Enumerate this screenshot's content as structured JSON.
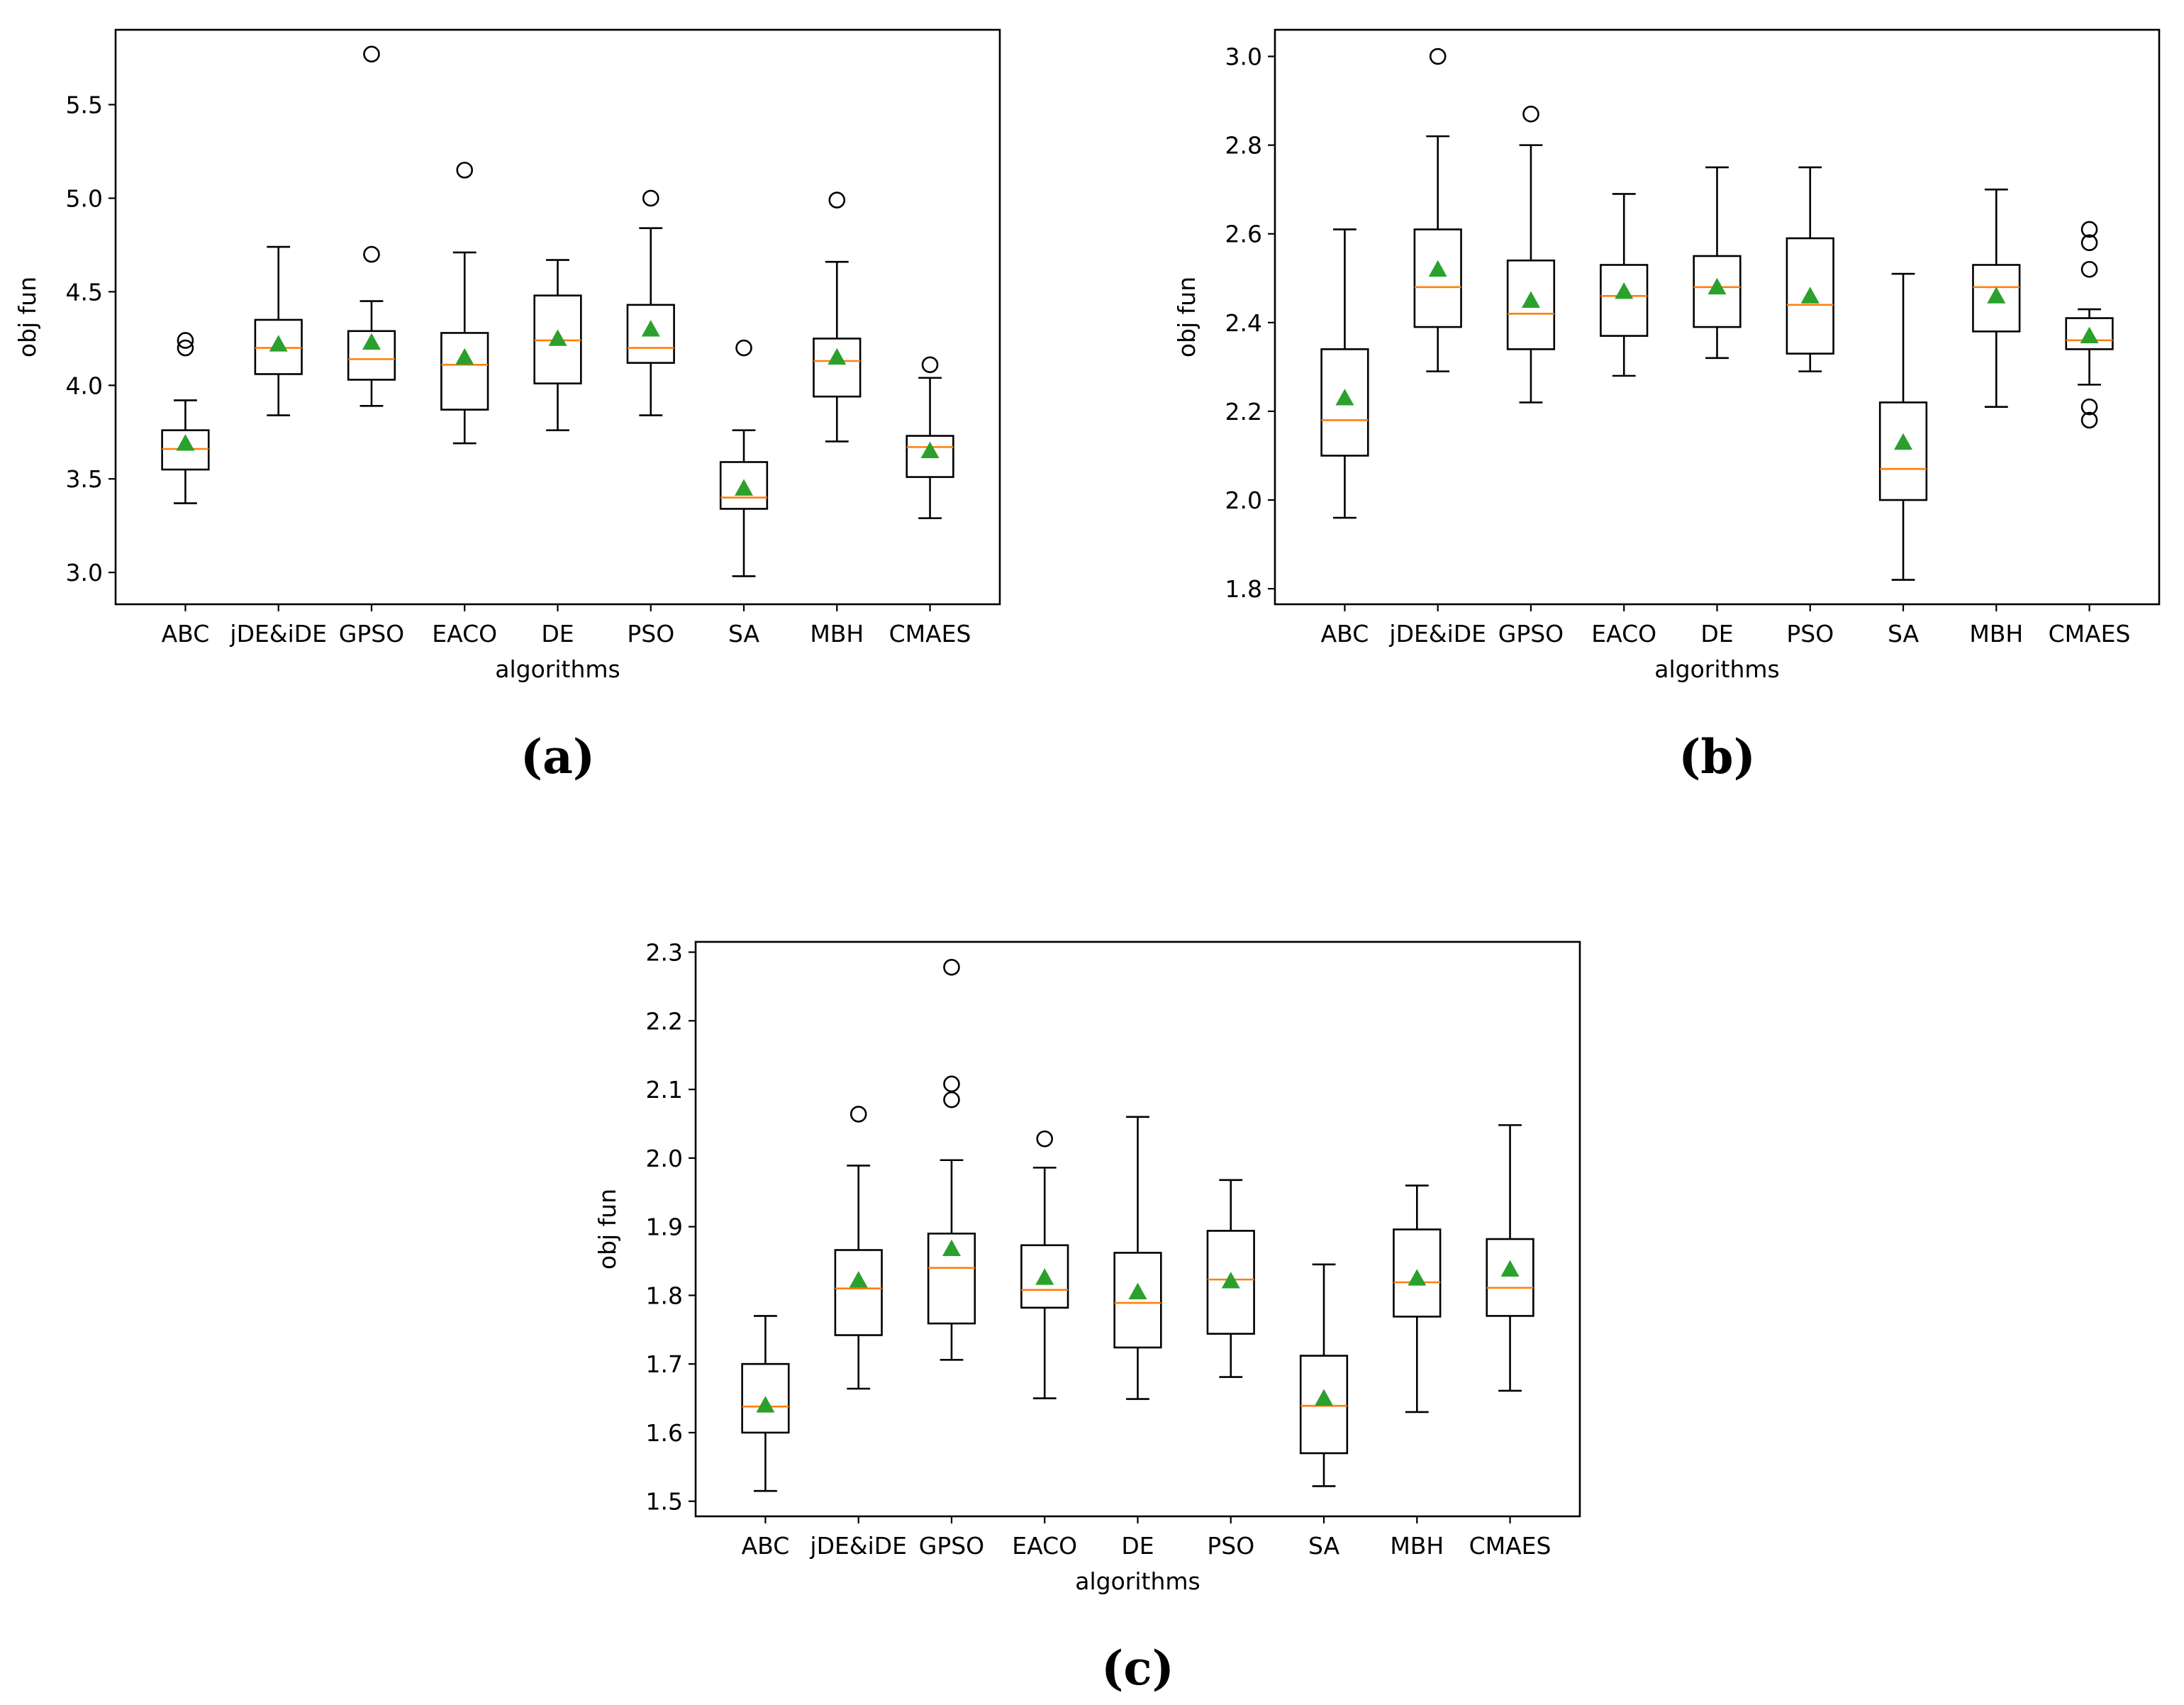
{
  "colors": {
    "box": "#000000",
    "median": "#ff7f0e",
    "mean_marker": "#2ca02c",
    "flier": "#000000",
    "background": "#ffffff"
  },
  "chart_data": [
    {
      "id": "a",
      "type": "boxplot",
      "caption": "(a)",
      "xlabel": "algorithms",
      "ylabel": "obj fun",
      "ylim": [
        2.83,
        5.9
      ],
      "yticks": [
        3.0,
        3.5,
        4.0,
        4.5,
        5.0,
        5.5
      ],
      "ytick_labels": [
        "3.0",
        "3.5",
        "4.0",
        "4.5",
        "5.0",
        "5.5"
      ],
      "categories": [
        "ABC",
        "jDE&iDE",
        "GPSO",
        "EACO",
        "DE",
        "PSO",
        "SA",
        "MBH",
        "CMAES"
      ],
      "boxes": [
        {
          "whislo": 3.37,
          "q1": 3.55,
          "med": 3.66,
          "q3": 3.76,
          "whishi": 3.92,
          "mean": 3.69,
          "fliers": [
            4.2,
            4.24
          ]
        },
        {
          "whislo": 3.84,
          "q1": 4.06,
          "med": 4.2,
          "q3": 4.35,
          "whishi": 4.74,
          "mean": 4.22,
          "fliers": []
        },
        {
          "whislo": 3.89,
          "q1": 4.03,
          "med": 4.14,
          "q3": 4.29,
          "whishi": 4.45,
          "mean": 4.23,
          "fliers": [
            4.7,
            5.77
          ]
        },
        {
          "whislo": 3.69,
          "q1": 3.87,
          "med": 4.11,
          "q3": 4.28,
          "whishi": 4.71,
          "mean": 4.15,
          "fliers": [
            5.15
          ]
        },
        {
          "whislo": 3.76,
          "q1": 4.01,
          "med": 4.24,
          "q3": 4.48,
          "whishi": 4.67,
          "mean": 4.25,
          "fliers": []
        },
        {
          "whislo": 3.84,
          "q1": 4.12,
          "med": 4.2,
          "q3": 4.43,
          "whishi": 4.84,
          "mean": 4.3,
          "fliers": [
            5.0
          ]
        },
        {
          "whislo": 2.98,
          "q1": 3.34,
          "med": 3.4,
          "q3": 3.59,
          "whishi": 3.76,
          "mean": 3.45,
          "fliers": [
            4.2
          ]
        },
        {
          "whislo": 3.7,
          "q1": 3.94,
          "med": 4.13,
          "q3": 4.25,
          "whishi": 4.66,
          "mean": 4.15,
          "fliers": [
            4.99
          ]
        },
        {
          "whislo": 3.29,
          "q1": 3.51,
          "med": 3.67,
          "q3": 3.73,
          "whishi": 4.04,
          "mean": 3.65,
          "fliers": [
            4.11
          ]
        }
      ]
    },
    {
      "id": "b",
      "type": "boxplot",
      "caption": "(b)",
      "xlabel": "algorithms",
      "ylabel": "obj fun",
      "ylim": [
        1.765,
        3.06
      ],
      "yticks": [
        1.8,
        2.0,
        2.2,
        2.4,
        2.6,
        2.8,
        3.0
      ],
      "ytick_labels": [
        "1.8",
        "2.0",
        "2.2",
        "2.4",
        "2.6",
        "2.8",
        "3.0"
      ],
      "categories": [
        "ABC",
        "jDE&iDE",
        "GPSO",
        "EACO",
        "DE",
        "PSO",
        "SA",
        "MBH",
        "CMAES"
      ],
      "boxes": [
        {
          "whislo": 1.96,
          "q1": 2.1,
          "med": 2.18,
          "q3": 2.34,
          "whishi": 2.61,
          "mean": 2.23,
          "fliers": []
        },
        {
          "whislo": 2.29,
          "q1": 2.39,
          "med": 2.48,
          "q3": 2.61,
          "whishi": 2.82,
          "mean": 2.52,
          "fliers": [
            3.0
          ]
        },
        {
          "whislo": 2.22,
          "q1": 2.34,
          "med": 2.42,
          "q3": 2.54,
          "whishi": 2.8,
          "mean": 2.45,
          "fliers": [
            2.87
          ]
        },
        {
          "whislo": 2.28,
          "q1": 2.37,
          "med": 2.46,
          "q3": 2.53,
          "whishi": 2.69,
          "mean": 2.47,
          "fliers": []
        },
        {
          "whislo": 2.32,
          "q1": 2.39,
          "med": 2.48,
          "q3": 2.55,
          "whishi": 2.75,
          "mean": 2.48,
          "fliers": []
        },
        {
          "whislo": 2.29,
          "q1": 2.33,
          "med": 2.44,
          "q3": 2.59,
          "whishi": 2.75,
          "mean": 2.46,
          "fliers": []
        },
        {
          "whislo": 1.82,
          "q1": 2.0,
          "med": 2.07,
          "q3": 2.22,
          "whishi": 2.51,
          "mean": 2.13,
          "fliers": []
        },
        {
          "whislo": 2.21,
          "q1": 2.38,
          "med": 2.48,
          "q3": 2.53,
          "whishi": 2.7,
          "mean": 2.46,
          "fliers": []
        },
        {
          "whislo": 2.26,
          "q1": 2.34,
          "med": 2.36,
          "q3": 2.41,
          "whishi": 2.43,
          "mean": 2.37,
          "fliers": [
            2.18,
            2.21,
            2.52,
            2.58,
            2.61
          ]
        }
      ]
    },
    {
      "id": "c",
      "type": "boxplot",
      "caption": "(c)",
      "xlabel": "algorithms",
      "ylabel": "obj fun",
      "ylim": [
        1.478,
        2.315
      ],
      "yticks": [
        1.5,
        1.6,
        1.7,
        1.8,
        1.9,
        2.0,
        2.1,
        2.2,
        2.3
      ],
      "ytick_labels": [
        "1.5",
        "1.6",
        "1.7",
        "1.8",
        "1.9",
        "2.0",
        "2.1",
        "2.2",
        "2.3"
      ],
      "categories": [
        "ABC",
        "jDE&iDE",
        "GPSO",
        "EACO",
        "DE",
        "PSO",
        "SA",
        "MBH",
        "CMAES"
      ],
      "boxes": [
        {
          "whislo": 1.515,
          "q1": 1.6,
          "med": 1.638,
          "q3": 1.7,
          "whishi": 1.77,
          "mean": 1.64,
          "fliers": []
        },
        {
          "whislo": 1.664,
          "q1": 1.742,
          "med": 1.81,
          "q3": 1.866,
          "whishi": 1.989,
          "mean": 1.822,
          "fliers": [
            2.064
          ]
        },
        {
          "whislo": 1.706,
          "q1": 1.759,
          "med": 1.84,
          "q3": 1.89,
          "whishi": 1.997,
          "mean": 1.868,
          "fliers": [
            2.085,
            2.108,
            2.278
          ]
        },
        {
          "whislo": 1.65,
          "q1": 1.782,
          "med": 1.808,
          "q3": 1.873,
          "whishi": 1.986,
          "mean": 1.826,
          "fliers": [
            2.028
          ]
        },
        {
          "whislo": 1.649,
          "q1": 1.724,
          "med": 1.789,
          "q3": 1.862,
          "whishi": 2.06,
          "mean": 1.805,
          "fliers": []
        },
        {
          "whislo": 1.681,
          "q1": 1.744,
          "med": 1.823,
          "q3": 1.894,
          "whishi": 1.968,
          "mean": 1.821,
          "fliers": []
        },
        {
          "whislo": 1.522,
          "q1": 1.57,
          "med": 1.639,
          "q3": 1.712,
          "whishi": 1.845,
          "mean": 1.65,
          "fliers": []
        },
        {
          "whislo": 1.63,
          "q1": 1.769,
          "med": 1.819,
          "q3": 1.896,
          "whishi": 1.96,
          "mean": 1.825,
          "fliers": []
        },
        {
          "whislo": 1.661,
          "q1": 1.77,
          "med": 1.811,
          "q3": 1.882,
          "whishi": 2.048,
          "mean": 1.838,
          "fliers": []
        }
      ]
    }
  ]
}
